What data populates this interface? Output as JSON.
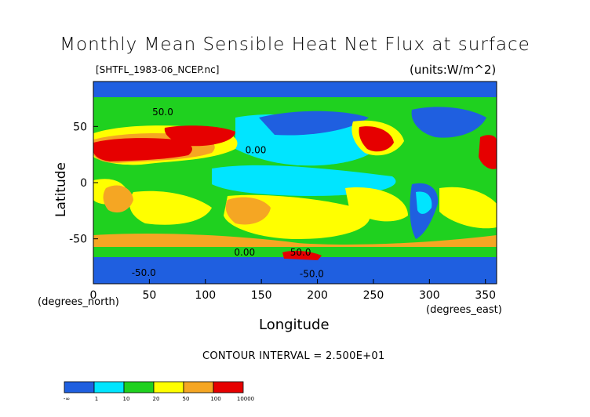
{
  "chart_data": {
    "type": "heatmap",
    "title": "Monthly Mean Sensible Heat Net Flux at surface",
    "source_label": "[SHTFL_1983-06_NCEP.nc]",
    "units_label": "(units:W/m^2)",
    "xlabel": "Longitude",
    "ylabel": "Latitude",
    "x_unit_label": "(degrees_east)",
    "y_unit_label": "(degrees_north)",
    "xlim": [
      0,
      360
    ],
    "ylim": [
      -90,
      90
    ],
    "x_ticks": [
      "0",
      "50",
      "100",
      "150",
      "200",
      "250",
      "300",
      "350"
    ],
    "x_tick_values": [
      0,
      50,
      100,
      150,
      200,
      250,
      300,
      350
    ],
    "y_ticks": [
      "50",
      "0",
      "-50"
    ],
    "y_tick_values": [
      50,
      0,
      -50
    ],
    "contour_interval_text": "CONTOUR INTERVAL = 2.500E+01",
    "contour_labels": [
      "50.0",
      "0.00",
      "-50.0"
    ],
    "colorbar": {
      "labels": [
        "-∞",
        "1",
        "10",
        "20",
        "50",
        "100",
        "10000"
      ],
      "colors": [
        "#1f5fe0",
        "#00e5ff",
        "#1fd11f",
        "#ffff00",
        "#f5a623",
        "#e60000"
      ]
    }
  }
}
